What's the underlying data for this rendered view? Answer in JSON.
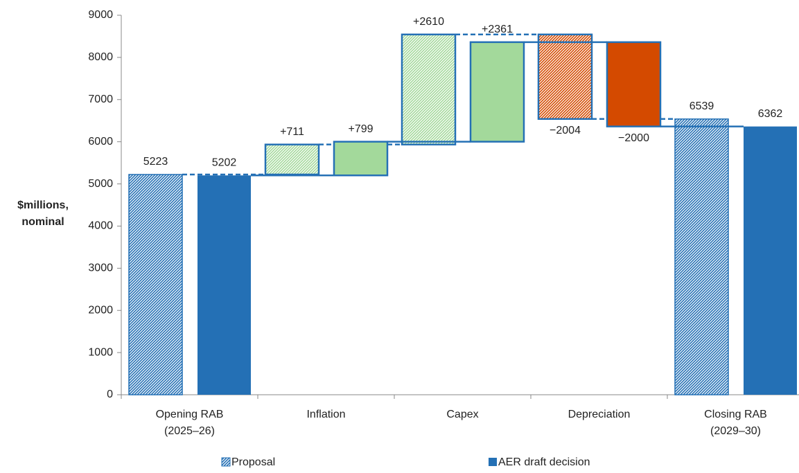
{
  "chart_data": {
    "type": "waterfall",
    "ylabel": [
      "$millions,",
      "nominal"
    ],
    "categories": [
      [
        "Opening RAB",
        "(2025–26)"
      ],
      [
        "Inflation"
      ],
      [
        "Capex"
      ],
      [
        "Depreciation"
      ],
      [
        "Closing RAB",
        "(2029–30)"
      ]
    ],
    "measures": [
      "absolute",
      "relative",
      "relative",
      "relative",
      "total"
    ],
    "colors": [
      "#2470b5",
      "#a3d99b",
      "#a3d99b",
      "#d44a00",
      "#2470b5"
    ],
    "series": [
      {
        "name": "Proposal",
        "fill": "hatch",
        "values": [
          5223,
          711,
          2610,
          -2004,
          6539
        ],
        "value_labels": [
          "5223",
          "+711",
          "+2610",
          "−2004",
          "6539"
        ]
      },
      {
        "name": "AER draft decision",
        "fill": "solid",
        "values": [
          5202,
          799,
          2361,
          -2000,
          6362
        ],
        "value_labels": [
          "5202",
          "+799",
          "+2361",
          "−2000",
          "6362"
        ]
      }
    ],
    "ylim": [
      0,
      9000
    ],
    "yticks": [
      0,
      1000,
      2000,
      3000,
      4000,
      5000,
      6000,
      7000,
      8000,
      9000
    ]
  }
}
